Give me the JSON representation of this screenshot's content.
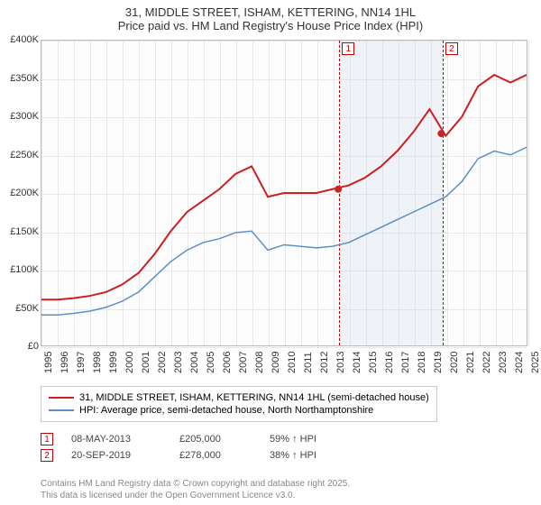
{
  "title": {
    "line1": "31, MIDDLE STREET, ISHAM, KETTERING, NN14 1HL",
    "line2": "Price paid vs. HM Land Registry's House Price Index (HPI)"
  },
  "chart": {
    "type": "line",
    "background_color": "#fdfdfd",
    "grid_color": "#e8e8e8",
    "ylim": [
      0,
      400000
    ],
    "ytick_step": 50000,
    "y_ticks": [
      "£0",
      "£50K",
      "£100K",
      "£150K",
      "£200K",
      "£250K",
      "£300K",
      "£350K",
      "£400K"
    ],
    "x_years": [
      1995,
      1996,
      1997,
      1998,
      1999,
      2000,
      2001,
      2002,
      2003,
      2004,
      2005,
      2006,
      2007,
      2008,
      2009,
      2010,
      2011,
      2012,
      2013,
      2014,
      2015,
      2016,
      2017,
      2018,
      2019,
      2020,
      2021,
      2022,
      2023,
      2024,
      2025
    ],
    "series": [
      {
        "name": "price_paid",
        "color": "#cc1f1f",
        "line_width": 2,
        "label": "31, MIDDLE STREET, ISHAM, KETTERING, NN14 1HL (semi-detached house)",
        "values": [
          60000,
          60000,
          62000,
          65000,
          70000,
          80000,
          95000,
          120000,
          150000,
          175000,
          190000,
          205000,
          225000,
          235000,
          195000,
          200000,
          200000,
          200000,
          205000,
          210000,
          220000,
          235000,
          255000,
          280000,
          310000,
          275000,
          300000,
          340000,
          355000,
          345000,
          355000
        ]
      },
      {
        "name": "hpi",
        "color": "#5b8fc7",
        "line_width": 1.5,
        "label": "HPI: Average price, semi-detached house, North Northamptonshire",
        "values": [
          40000,
          40000,
          42000,
          45000,
          50000,
          58000,
          70000,
          90000,
          110000,
          125000,
          135000,
          140000,
          148000,
          150000,
          125000,
          132000,
          130000,
          128000,
          130000,
          135000,
          145000,
          155000,
          165000,
          175000,
          185000,
          195000,
          215000,
          245000,
          255000,
          250000,
          260000
        ]
      }
    ],
    "sale_points": [
      {
        "year_frac": 2013.35,
        "value": 205000
      },
      {
        "year_frac": 2019.72,
        "value": 278000
      }
    ],
    "markers": [
      {
        "id": "1",
        "year_frac": 2013.35
      },
      {
        "id": "2",
        "year_frac": 2019.72
      }
    ],
    "shade_band": {
      "start": 2013.35,
      "end": 2019.72,
      "color": "rgba(200,215,235,0.25)"
    }
  },
  "legend": {
    "items": [
      {
        "color": "#cc1f1f",
        "label": "31, MIDDLE STREET, ISHAM, KETTERING, NN14 1HL (semi-detached house)"
      },
      {
        "color": "#5b8fc7",
        "label": "HPI: Average price, semi-detached house, North Northamptonshire"
      }
    ]
  },
  "footer_rows": [
    {
      "marker": "1",
      "date": "08-MAY-2013",
      "price": "£205,000",
      "pct": "59% ↑ HPI"
    },
    {
      "marker": "2",
      "date": "20-SEP-2019",
      "price": "£278,000",
      "pct": "38% ↑ HPI"
    }
  ],
  "credit": {
    "line1": "Contains HM Land Registry data © Crown copyright and database right 2025.",
    "line2": "This data is licensed under the Open Government Licence v3.0."
  }
}
